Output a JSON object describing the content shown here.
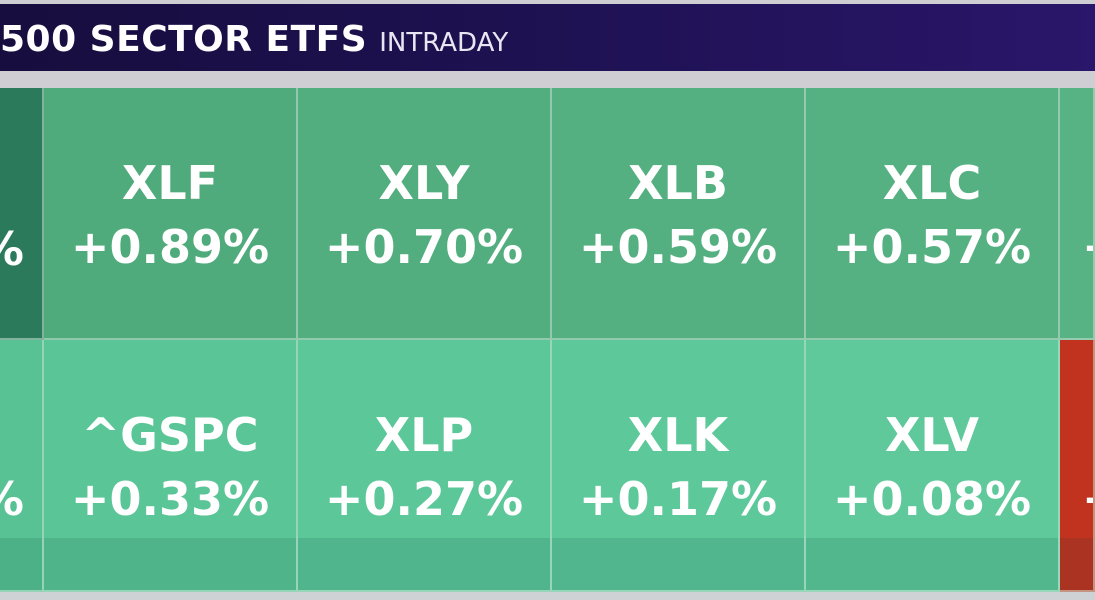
{
  "header": {
    "title": "500 SECTOR ETFS",
    "subtitle": "INTRADAY"
  },
  "row1": [
    {
      "symbol": "",
      "change": "%",
      "color": "#2c7a5c"
    },
    {
      "symbol": "XLF",
      "change": "+0.89%",
      "color": "#4faa7c"
    },
    {
      "symbol": "XLY",
      "change": "+0.70%",
      "color": "#52ad7f"
    },
    {
      "symbol": "XLB",
      "change": "+0.59%",
      "color": "#54af81"
    },
    {
      "symbol": "XLC",
      "change": "+0.57%",
      "color": "#55b082"
    },
    {
      "symbol": "",
      "change": "+",
      "color": "#57b284"
    }
  ],
  "row2": [
    {
      "symbol": "",
      "change": "%",
      "color": "#58c294"
    },
    {
      "symbol": "^GSPC",
      "change": "+0.33%",
      "color": "#5ac596"
    },
    {
      "symbol": "XLP",
      "change": "+0.27%",
      "color": "#5cc799"
    },
    {
      "symbol": "XLK",
      "change": "+0.17%",
      "color": "#5dc89a"
    },
    {
      "symbol": "XLV",
      "change": "+0.08%",
      "color": "#5fc99b"
    },
    {
      "symbol": "",
      "change": "+",
      "color": "#c2331f"
    }
  ]
}
